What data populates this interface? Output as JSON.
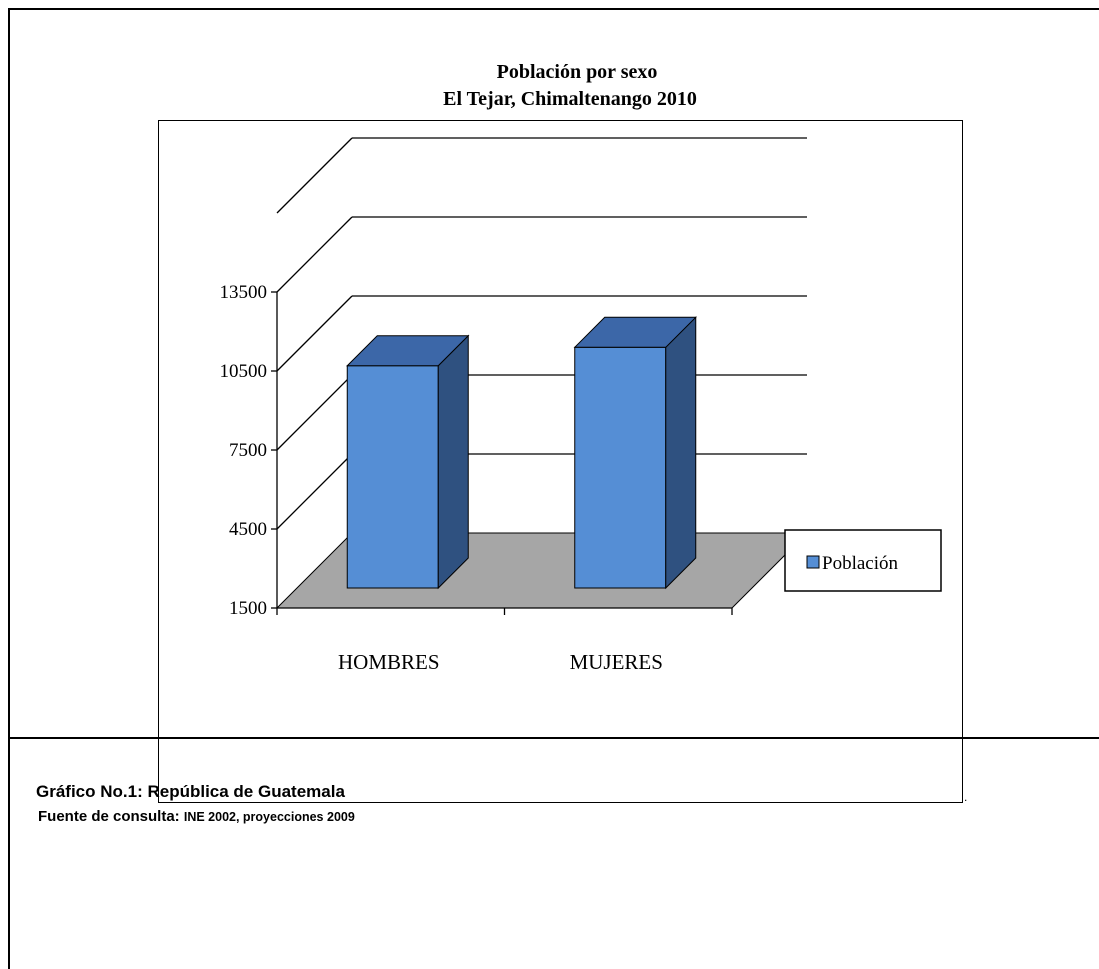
{
  "chart_data": {
    "type": "bar",
    "title": "Población por sexo",
    "subtitle": "El Tejar, Chimaltenango 2010",
    "categories": [
      "HOMBRES",
      "MUJERES"
    ],
    "series": [
      {
        "name": "Población",
        "values": [
          10700,
          11400
        ],
        "color": "#558ed5"
      }
    ],
    "y_ticks": [
      "1500",
      "4500",
      "7500",
      "10500",
      "13500"
    ],
    "ylim": [
      1500,
      16500
    ],
    "style": "3d-column",
    "grid": true,
    "legend_position": "right"
  },
  "caption": {
    "label": "Gráfico No.1: República de Guatemala"
  },
  "source": {
    "label": "Fuente de consulta:",
    "value": "INE 2002, proyecciones 2009"
  },
  "marker": "."
}
